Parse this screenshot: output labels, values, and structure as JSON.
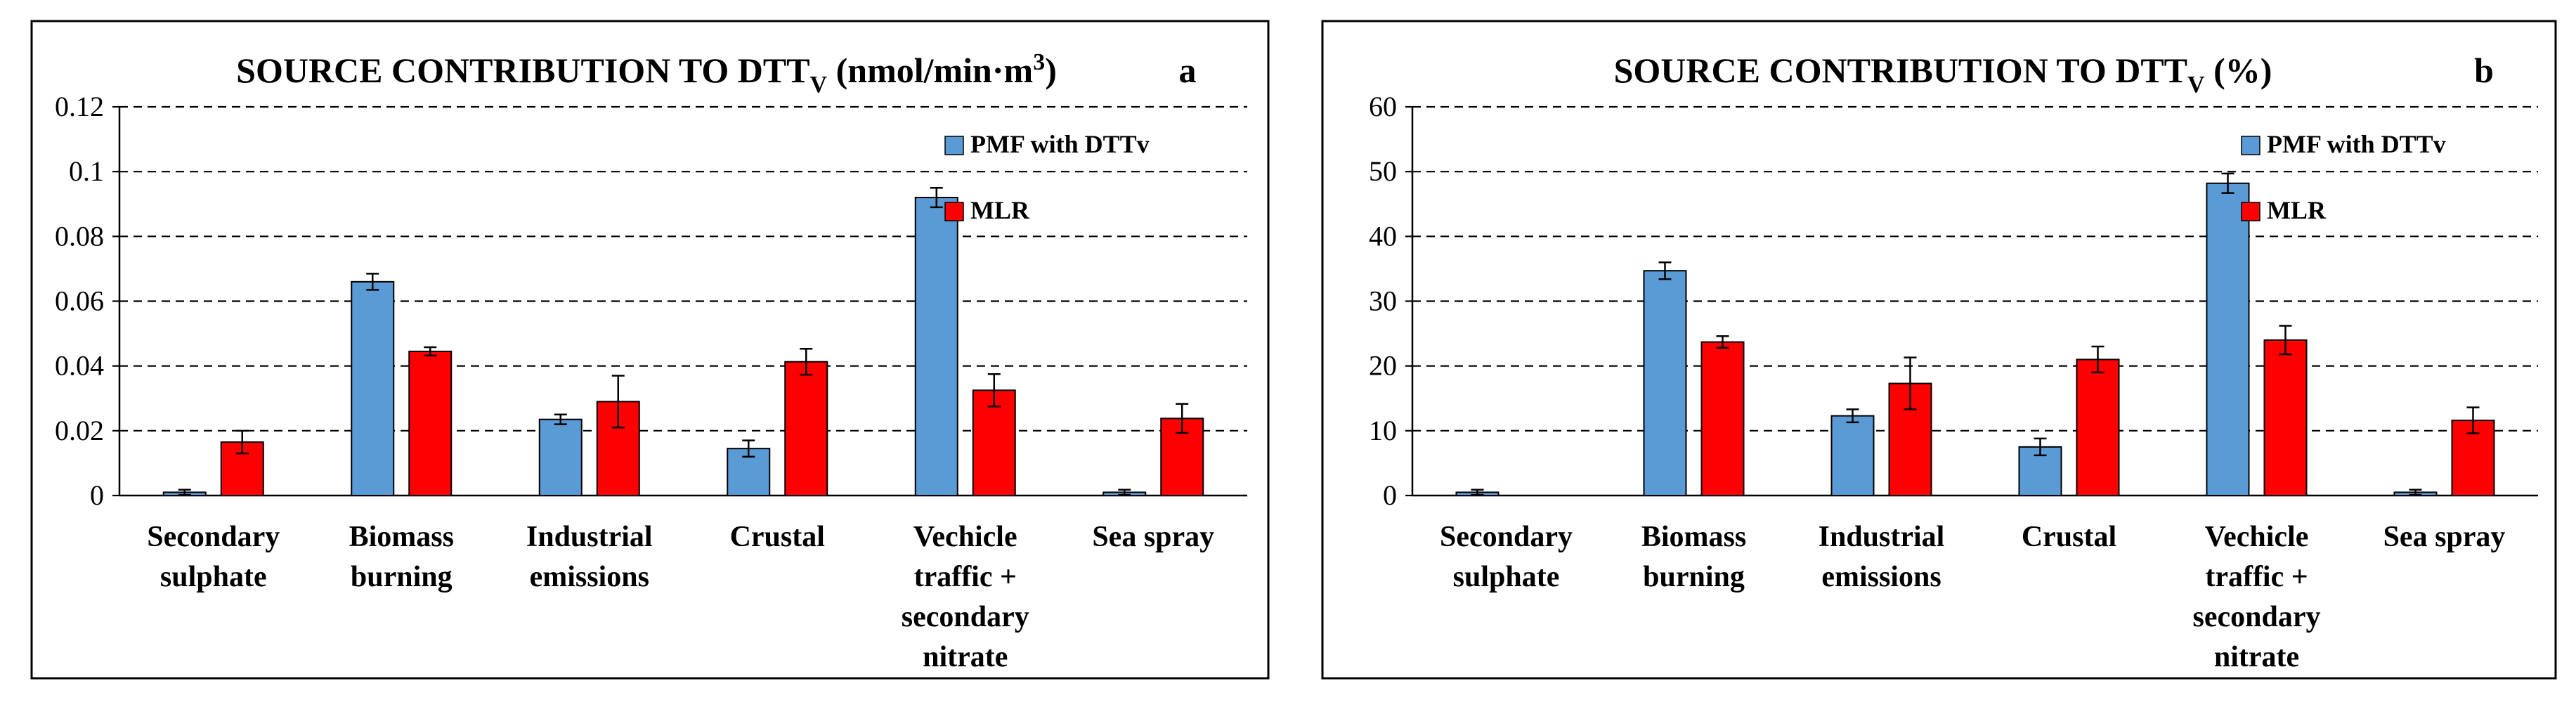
{
  "colors": {
    "pmf": "#5b9bd5",
    "mlr": "#ff0000",
    "frame": "#000000",
    "grid": "#000000",
    "background": "#ffffff"
  },
  "chart_data": [
    {
      "type": "bar",
      "panel_letter": "a",
      "title_main": "SOURCE CONTRIBUTION TO DTT",
      "title_subscript": "V",
      "title_unit_pre": " (nmol/min·m",
      "title_unit_sup": "3",
      "title_unit_post": ")",
      "ylim": [
        0,
        0.12
      ],
      "yticks": [
        "0",
        "0.02",
        "0.04",
        "0.06",
        "0.08",
        "0.1",
        "0.12"
      ],
      "ytick_values": [
        0,
        0.02,
        0.04,
        0.06,
        0.08,
        0.1,
        0.12
      ],
      "grid": "dashed-horizontal",
      "legend_position": "top-right",
      "categories": [
        [
          "Secondary",
          "sulphate"
        ],
        [
          "Biomass",
          "burning"
        ],
        [
          "Industrial",
          "emissions"
        ],
        [
          "Crustal"
        ],
        [
          "Vechicle",
          "traffic +",
          "secondary",
          "nitrate"
        ],
        [
          "Sea spray"
        ]
      ],
      "series": [
        {
          "name": "PMF with DTTv",
          "color_key": "pmf",
          "values": [
            0.001,
            0.066,
            0.0235,
            0.0145,
            0.092,
            0.001
          ],
          "errors": [
            0.0008,
            0.0025,
            0.0015,
            0.0025,
            0.003,
            0.0008
          ]
        },
        {
          "name": "MLR",
          "color_key": "mlr",
          "values": [
            0.0165,
            0.0445,
            0.029,
            0.0413,
            0.0325,
            0.0238
          ],
          "errors": [
            0.0035,
            0.0013,
            0.008,
            0.004,
            0.005,
            0.0045
          ]
        }
      ]
    },
    {
      "type": "bar",
      "panel_letter": "b",
      "title_main": "SOURCE CONTRIBUTION TO DTT",
      "title_subscript": "V",
      "title_unit_pre": " (%)",
      "title_unit_sup": "",
      "title_unit_post": "",
      "ylim": [
        0,
        60
      ],
      "yticks": [
        "0",
        "10",
        "20",
        "30",
        "40",
        "50",
        "60"
      ],
      "ytick_values": [
        0,
        10,
        20,
        30,
        40,
        50,
        60
      ],
      "grid": "dashed-horizontal",
      "legend_position": "top-right",
      "categories": [
        [
          "Secondary",
          "sulphate"
        ],
        [
          "Biomass",
          "burning"
        ],
        [
          "Industrial",
          "emissions"
        ],
        [
          "Crustal"
        ],
        [
          "Vechicle",
          "traffic +",
          "secondary",
          "nitrate"
        ],
        [
          "Sea spray"
        ]
      ],
      "series": [
        {
          "name": "PMF with DTTv",
          "color_key": "pmf",
          "values": [
            0.5,
            34.7,
            12.3,
            7.5,
            48.2,
            0.5
          ],
          "errors": [
            0.4,
            1.3,
            1.0,
            1.3,
            1.5,
            0.4
          ]
        },
        {
          "name": "MLR",
          "color_key": "mlr",
          "values": [
            0,
            23.7,
            17.3,
            21.0,
            24.0,
            11.6
          ],
          "errors": [
            0,
            0.9,
            4.0,
            2.0,
            2.2,
            2.0
          ]
        }
      ]
    }
  ]
}
